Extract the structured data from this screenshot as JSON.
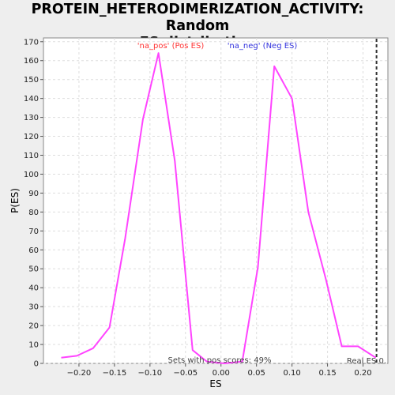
{
  "chart_data": {
    "type": "line",
    "title_line1": "PROTEIN_HETERODIMERIZATION_ACTIVITY: Random",
    "title_line2": "ES distribution",
    "xlabel": "ES",
    "ylabel": "P(ES)",
    "xlim": [
      -0.25,
      0.235
    ],
    "ylim": [
      0,
      172
    ],
    "xticks": [
      -0.2,
      -0.15,
      -0.1,
      -0.05,
      0.0,
      0.05,
      0.1,
      0.15,
      0.2
    ],
    "xtick_labels": [
      "−0.20",
      "−0.15",
      "−0.10",
      "−0.05",
      "0.00",
      "0.05",
      "0.10",
      "0.15",
      "0.20"
    ],
    "yticks": [
      0,
      10,
      20,
      30,
      40,
      50,
      60,
      70,
      80,
      90,
      100,
      110,
      120,
      130,
      140,
      150,
      160,
      170
    ],
    "grid": true,
    "series": [
      {
        "color": "#ff44ff",
        "x": [
          -0.225,
          -0.203,
          -0.18,
          -0.157,
          -0.135,
          -0.11,
          -0.088,
          -0.065,
          -0.04,
          -0.02,
          0.005,
          0.03,
          0.052,
          0.075,
          0.1,
          0.123,
          0.148,
          0.17,
          0.193,
          0.218
        ],
        "y": [
          3,
          4,
          8,
          19,
          66,
          129,
          164,
          107,
          7,
          1,
          0,
          1,
          51,
          157,
          140,
          80,
          44,
          9,
          9,
          3
        ]
      }
    ],
    "annotations": {
      "pos_label": "'na_pos' (Pos ES)",
      "pos_color": "#ff3333",
      "neg_label": "'na_neg' (Neg ES)",
      "neg_color": "#3333dd",
      "sets_text": "Sets with pos scores: 49%",
      "real_es_label": "Real ES 0.",
      "real_es_x": 0.219
    }
  }
}
